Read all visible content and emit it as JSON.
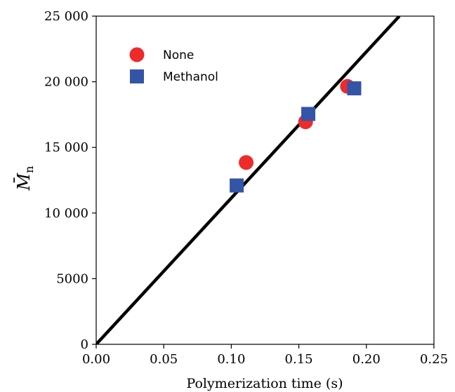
{
  "chart_data": {
    "type": "scatter",
    "title": "",
    "xlabel": "Polymerization time (s)",
    "ylabel": {
      "main": "M̄",
      "subscript": "n"
    },
    "xlim": [
      0,
      0.25
    ],
    "ylim": [
      0,
      25000
    ],
    "x_ticks": [
      0.0,
      0.05,
      0.1,
      0.15,
      0.2,
      0.25
    ],
    "x_tick_labels": [
      "0.00",
      "0.05",
      "0.10",
      "0.15",
      "0.20",
      "0.25"
    ],
    "y_ticks": [
      0,
      5000,
      10000,
      15000,
      20000,
      25000
    ],
    "y_tick_labels": [
      "0",
      "5000",
      "10 000",
      "15 000",
      "20 000",
      "25 000"
    ],
    "grid": false,
    "legend_position": "top-left",
    "series": [
      {
        "name": "None",
        "marker": "circle",
        "color": "#ee2a2a",
        "x": [
          0.111,
          0.155,
          0.186
        ],
        "y": [
          13850,
          16950,
          19650
        ]
      },
      {
        "name": "Methanol",
        "marker": "square",
        "color": "#3454a8",
        "x": [
          0.104,
          0.157,
          0.191
        ],
        "y": [
          12100,
          17550,
          19500
        ]
      }
    ],
    "lines": [
      {
        "name": "",
        "kind": "fit",
        "color": "#000000",
        "x": [
          0.0,
          0.2244
        ],
        "y": [
          0,
          25000
        ]
      }
    ]
  }
}
